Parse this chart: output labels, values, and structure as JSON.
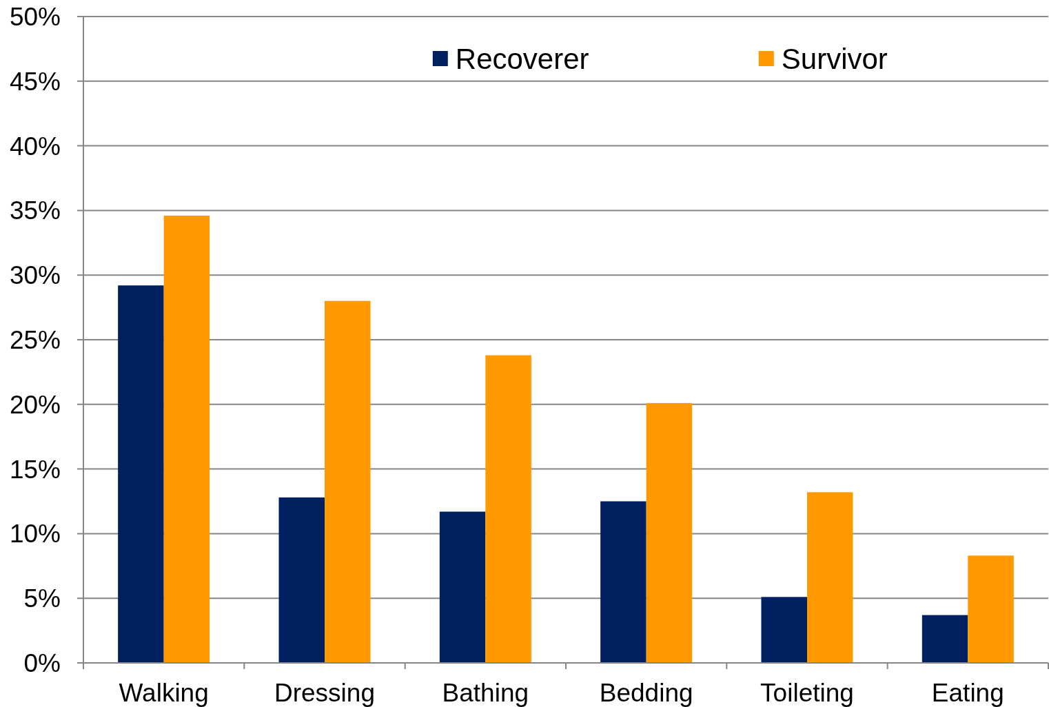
{
  "chart_data": {
    "type": "bar",
    "categories": [
      "Walking",
      "Dressing",
      "Bathing",
      "Bedding",
      "Toileting",
      "Eating"
    ],
    "series": [
      {
        "name": "Recoverer",
        "color": "#002060",
        "values": [
          29.2,
          12.8,
          11.7,
          12.5,
          5.1,
          3.7
        ]
      },
      {
        "name": "Survivor",
        "color": "#ff9900",
        "values": [
          34.6,
          28.0,
          23.8,
          20.1,
          13.2,
          8.3
        ]
      }
    ],
    "ylim": [
      0,
      50
    ],
    "yticks": [
      {
        "value": 0,
        "label": "0%"
      },
      {
        "value": 5,
        "label": "5%"
      },
      {
        "value": 10,
        "label": "10%"
      },
      {
        "value": 15,
        "label": "15%"
      },
      {
        "value": 20,
        "label": "20%"
      },
      {
        "value": 25,
        "label": "25%"
      },
      {
        "value": 30,
        "label": "30%"
      },
      {
        "value": 35,
        "label": "35%"
      },
      {
        "value": 40,
        "label": "40%"
      },
      {
        "value": 45,
        "label": "45%"
      },
      {
        "value": 50,
        "label": "50%"
      }
    ],
    "grid": "y",
    "legend": "top"
  }
}
